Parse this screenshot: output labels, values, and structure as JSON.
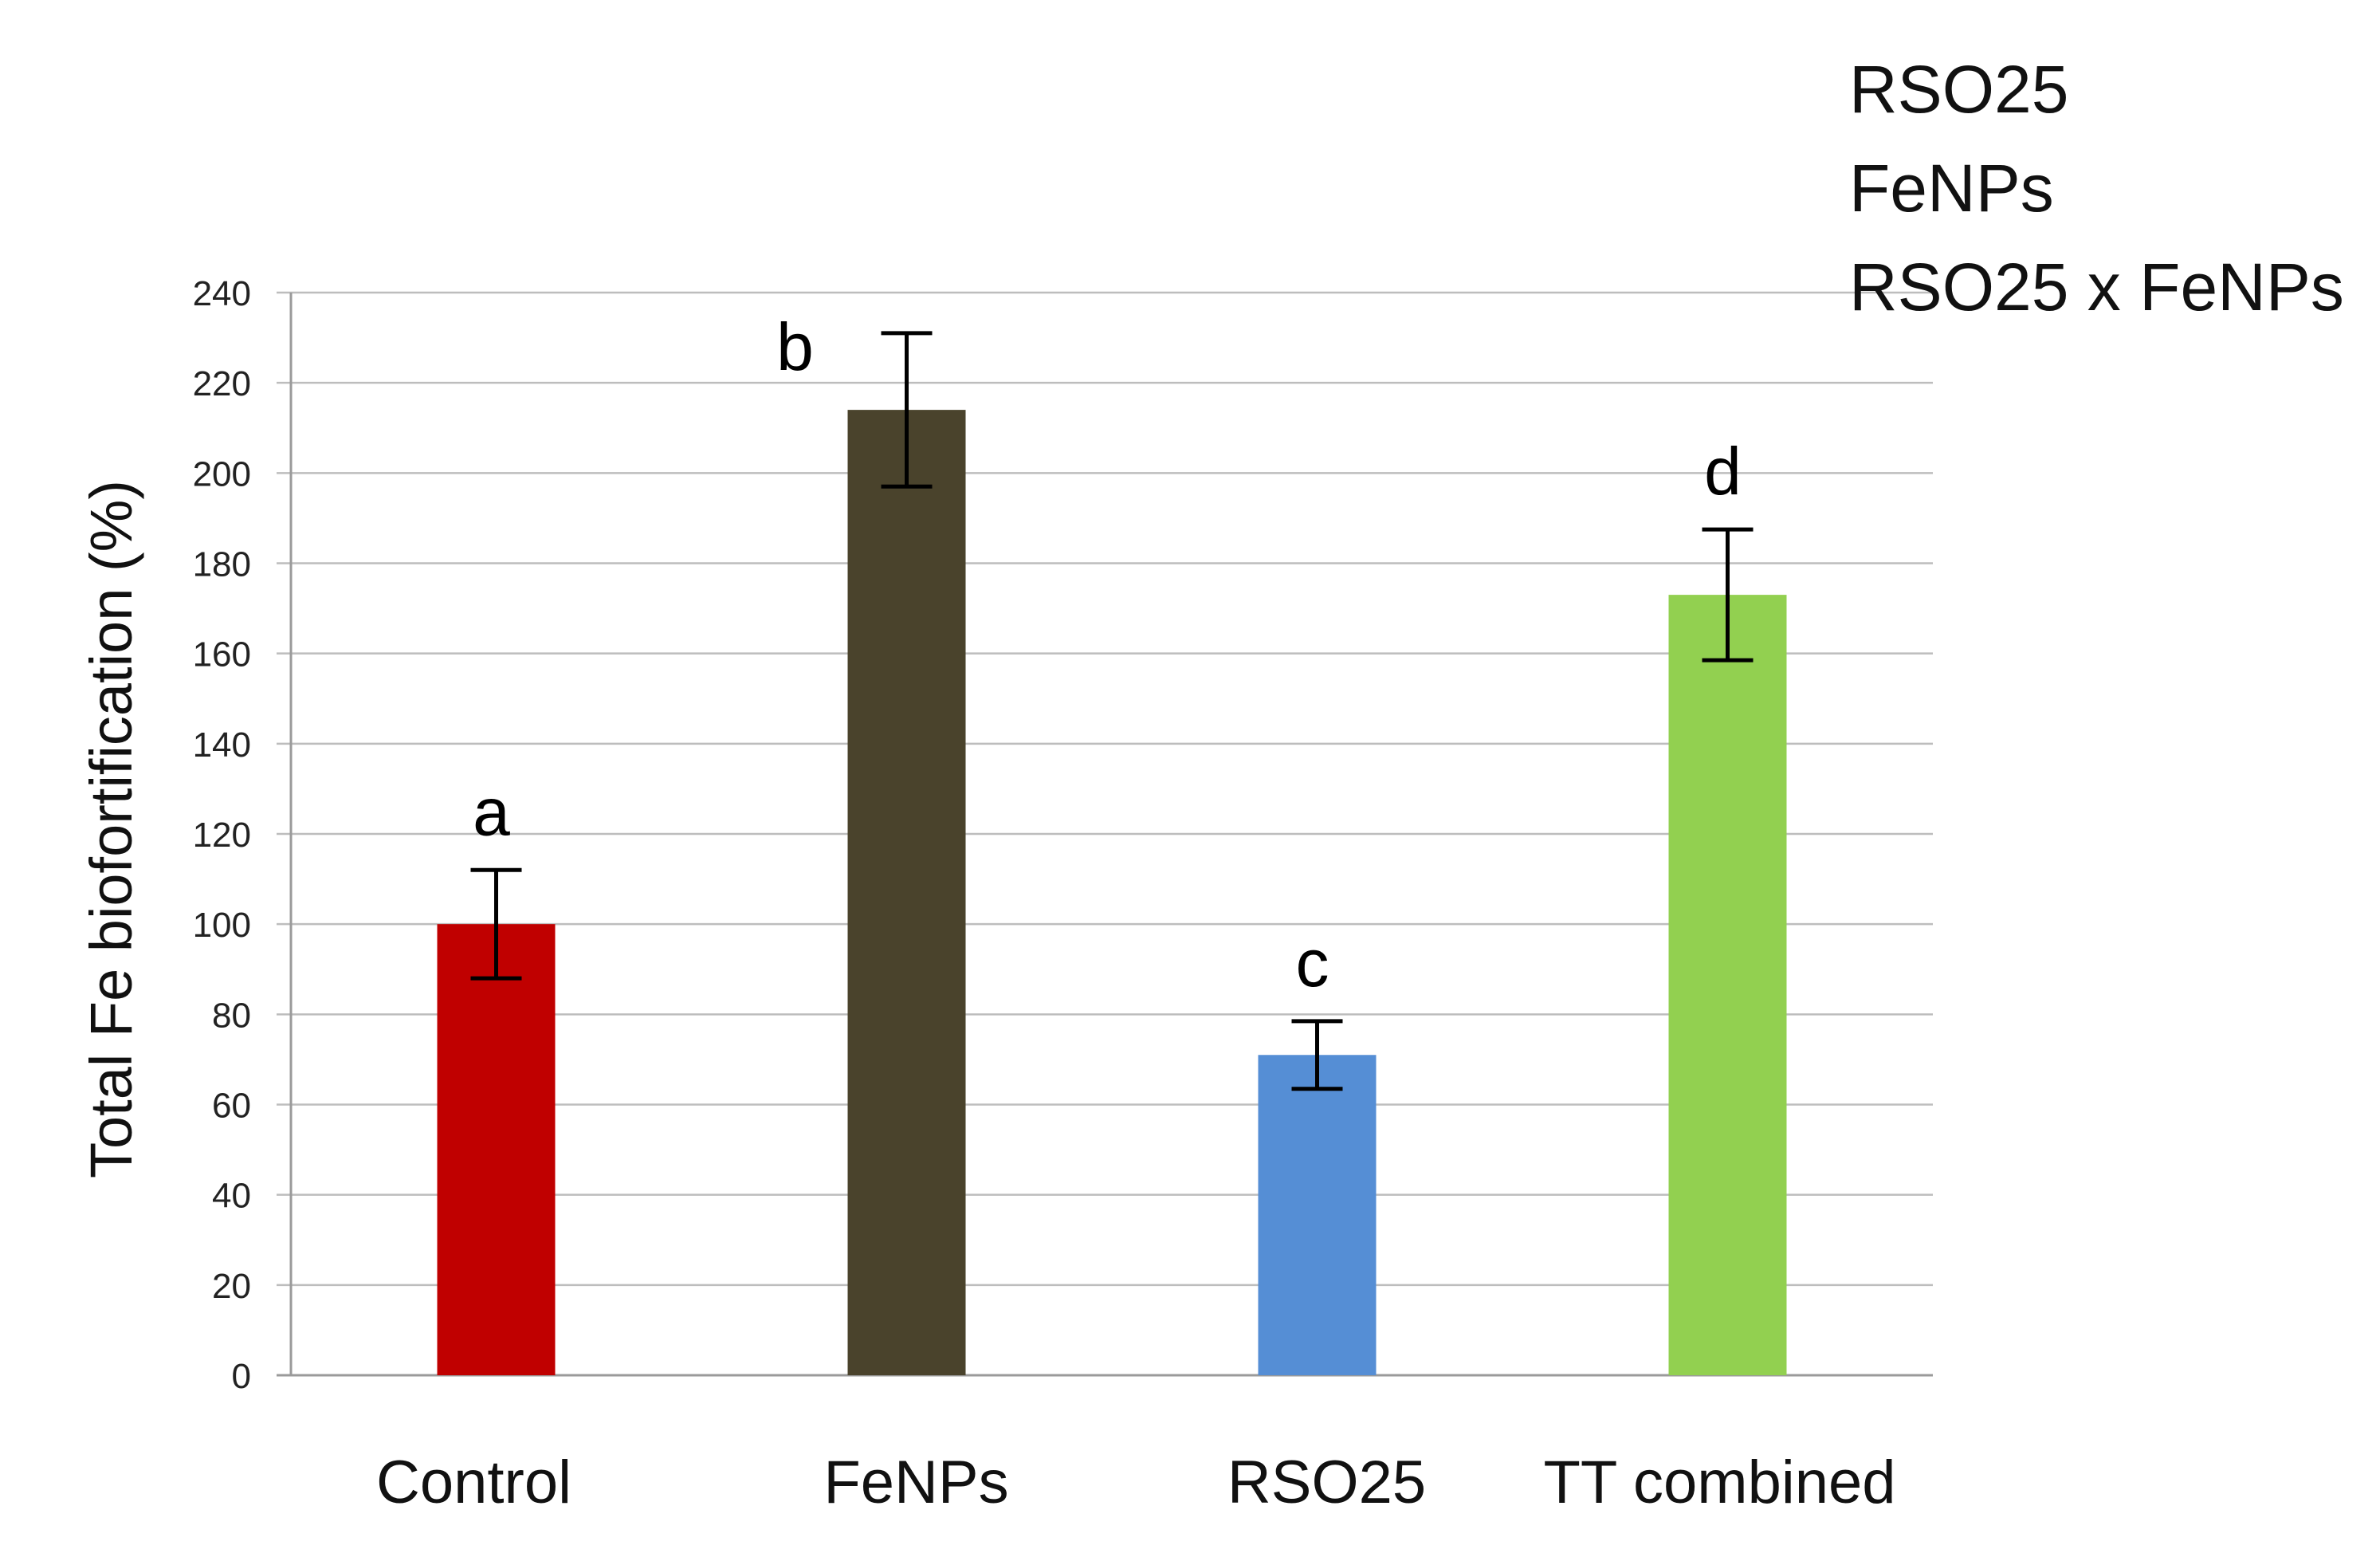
{
  "chart_data": {
    "type": "bar",
    "title": "",
    "xlabel": "",
    "ylabel": "Total Fe biofortification  (%)",
    "ylim": [
      0,
      240
    ],
    "yticks": [
      0,
      20,
      40,
      60,
      80,
      100,
      120,
      140,
      160,
      180,
      200,
      220,
      240
    ],
    "grid": true,
    "categories": [
      "Control",
      "FeNPs",
      "RSO25",
      "TT combined"
    ],
    "values": [
      100,
      214,
      71,
      173
    ],
    "errors": [
      12,
      17,
      7.5,
      14.5
    ],
    "significance_letters": [
      "a",
      "b",
      "c",
      "d"
    ],
    "colors": [
      "#c00000",
      "#4a432c",
      "#558ed5",
      "#92d050"
    ],
    "legend_text": [
      "RSO25",
      "FeNPs",
      "RSO25 x FeNPs"
    ],
    "legend_position": "top-right"
  }
}
